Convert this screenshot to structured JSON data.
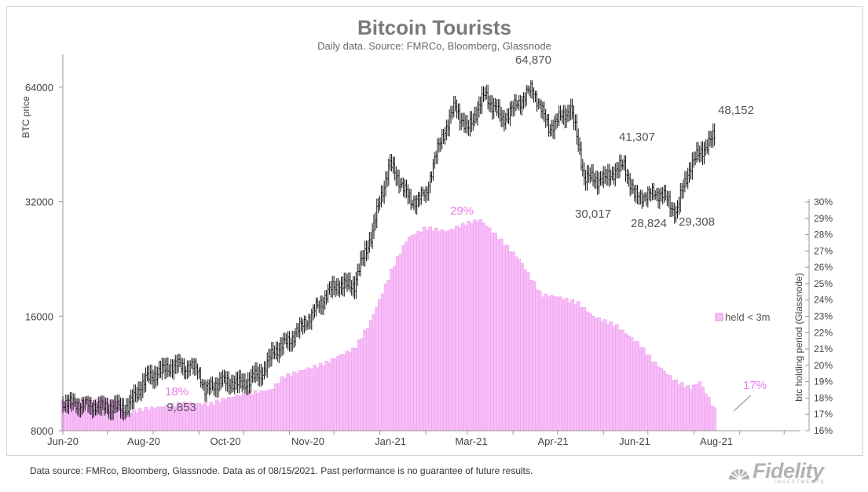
{
  "chart_data": {
    "type": "line",
    "title": "Bitcoin Tourists",
    "subtitle": "Daily data.  Source: FMRCo, Bloomberg, Glassnode",
    "x_ticks": [
      "Jun-20",
      "Aug-20",
      "Oct-20",
      "Nov-20",
      "Jan-21",
      "Mar-21",
      "Apr-21",
      "Jun-21",
      "Aug-21"
    ],
    "y_left": {
      "label": "BTC price",
      "scale": "log",
      "ticks": [
        8000,
        16000,
        32000,
        64000
      ],
      "range": [
        8000,
        80000
      ]
    },
    "y_right": {
      "label": "btc holding period (Glassnode)",
      "range": [
        16,
        30
      ],
      "ticks": [
        "16%",
        "17%",
        "18%",
        "19%",
        "20%",
        "21%",
        "22%",
        "23%",
        "24%",
        "25%",
        "26%",
        "27%",
        "28%",
        "29%",
        "30%"
      ]
    },
    "series": [
      {
        "name": "",
        "axis": "left",
        "style": "ohlc",
        "color": "#111111",
        "points": [
          [
            "2020-06-01",
            9500
          ],
          [
            "2020-06-15",
            9400
          ],
          [
            "2020-07-01",
            9250
          ],
          [
            "2020-07-15",
            9200
          ],
          [
            "2020-07-27",
            10900
          ],
          [
            "2020-08-10",
            11700
          ],
          [
            "2020-08-17",
            11900
          ],
          [
            "2020-08-31",
            11700
          ],
          [
            "2020-09-05",
            10200
          ],
          [
            "2020-09-15",
            10800
          ],
          [
            "2020-10-01",
            10600
          ],
          [
            "2020-10-15",
            11500
          ],
          [
            "2020-10-21",
            12900
          ],
          [
            "2020-11-01",
            13800
          ],
          [
            "2020-11-15",
            16000
          ],
          [
            "2020-12-01",
            19200
          ],
          [
            "2020-12-15",
            19400
          ],
          [
            "2020-12-27",
            26500
          ],
          [
            "2021-01-08",
            40000
          ],
          [
            "2021-01-22",
            32000
          ],
          [
            "2021-02-01",
            33500
          ],
          [
            "2021-02-10",
            45000
          ],
          [
            "2021-02-21",
            57000
          ],
          [
            "2021-03-01",
            49000
          ],
          [
            "2021-03-13",
            61000
          ],
          [
            "2021-03-25",
            52500
          ],
          [
            "2021-04-14",
            63500
          ],
          [
            "2021-04-25",
            50000
          ],
          [
            "2021-05-10",
            56000
          ],
          [
            "2021-05-19",
            37000
          ],
          [
            "2021-06-01",
            36500
          ],
          [
            "2021-06-15",
            40000
          ],
          [
            "2021-06-22",
            33000
          ],
          [
            "2021-07-10",
            33800
          ],
          [
            "2021-07-20",
            29800
          ],
          [
            "2021-07-30",
            40000
          ],
          [
            "2021-08-15",
            47500
          ]
        ]
      },
      {
        "name": "held < 3m",
        "axis": "right",
        "type": "bar",
        "color": "#f8bdf8",
        "edge_color": "#e58fe5",
        "points": [
          [
            "2020-06-01",
            17.8
          ],
          [
            "2020-06-25",
            17.9
          ],
          [
            "2020-07-10",
            17.8
          ],
          [
            "2020-07-12",
            17.0
          ],
          [
            "2020-07-25",
            17.3
          ],
          [
            "2020-08-10",
            17.5
          ],
          [
            "2020-08-25",
            17.7
          ],
          [
            "2020-09-08",
            17.6
          ],
          [
            "2020-09-20",
            18.0
          ],
          [
            "2020-10-05",
            18.3
          ],
          [
            "2020-10-20",
            18.5
          ],
          [
            "2020-10-28",
            19.3
          ],
          [
            "2020-11-10",
            19.7
          ],
          [
            "2020-11-25",
            20.1
          ],
          [
            "2020-12-05",
            20.6
          ],
          [
            "2020-12-15",
            21.0
          ],
          [
            "2020-12-25",
            22.5
          ],
          [
            "2021-01-01",
            24.0
          ],
          [
            "2021-01-10",
            26.0
          ],
          [
            "2021-01-20",
            27.8
          ],
          [
            "2021-02-01",
            28.4
          ],
          [
            "2021-02-15",
            28.2
          ],
          [
            "2021-03-01",
            28.7
          ],
          [
            "2021-03-10",
            28.9
          ],
          [
            "2021-03-20",
            28.0
          ],
          [
            "2021-04-05",
            26.5
          ],
          [
            "2021-04-20",
            24.3
          ],
          [
            "2021-05-01",
            24.2
          ],
          [
            "2021-05-15",
            23.8
          ],
          [
            "2021-05-25",
            23.0
          ],
          [
            "2021-06-10",
            22.4
          ],
          [
            "2021-06-25",
            21.3
          ],
          [
            "2021-07-05",
            20.2
          ],
          [
            "2021-07-20",
            19.0
          ],
          [
            "2021-07-30",
            18.6
          ],
          [
            "2021-08-05",
            19.0
          ],
          [
            "2021-08-15",
            17.3
          ]
        ]
      }
    ],
    "annotations": [
      {
        "text": "64,870",
        "series": "price",
        "date": "2021-04-14"
      },
      {
        "text": "48,152",
        "series": "price",
        "date": "2021-08-15"
      },
      {
        "text": "41,307",
        "series": "price",
        "date": "2021-06-15"
      },
      {
        "text": "30,017",
        "series": "price",
        "date": "2021-05-19"
      },
      {
        "text": "28,824",
        "series": "price",
        "date": "2021-06-22"
      },
      {
        "text": "29,308",
        "series": "price",
        "date": "2021-07-20"
      },
      {
        "text": "9,853",
        "series": "price",
        "date": "2020-09-05"
      },
      {
        "text": "29%",
        "series": "held",
        "date": "2021-03-10"
      },
      {
        "text": "18%",
        "series": "held",
        "date": "2020-09-05"
      },
      {
        "text": "17%",
        "series": "held",
        "date": "2021-08-15"
      }
    ],
    "legend": {
      "placement": "right",
      "entry": "held < 3m"
    },
    "grid": false
  },
  "footer": {
    "note": "Data source: FMRco, Bloomberg, Glassnode. Data as of 08/15/2021. Past performance is no guarantee of future results.",
    "logo_text": "Fidelity",
    "logo_tagline": "INVESTMENTS"
  }
}
